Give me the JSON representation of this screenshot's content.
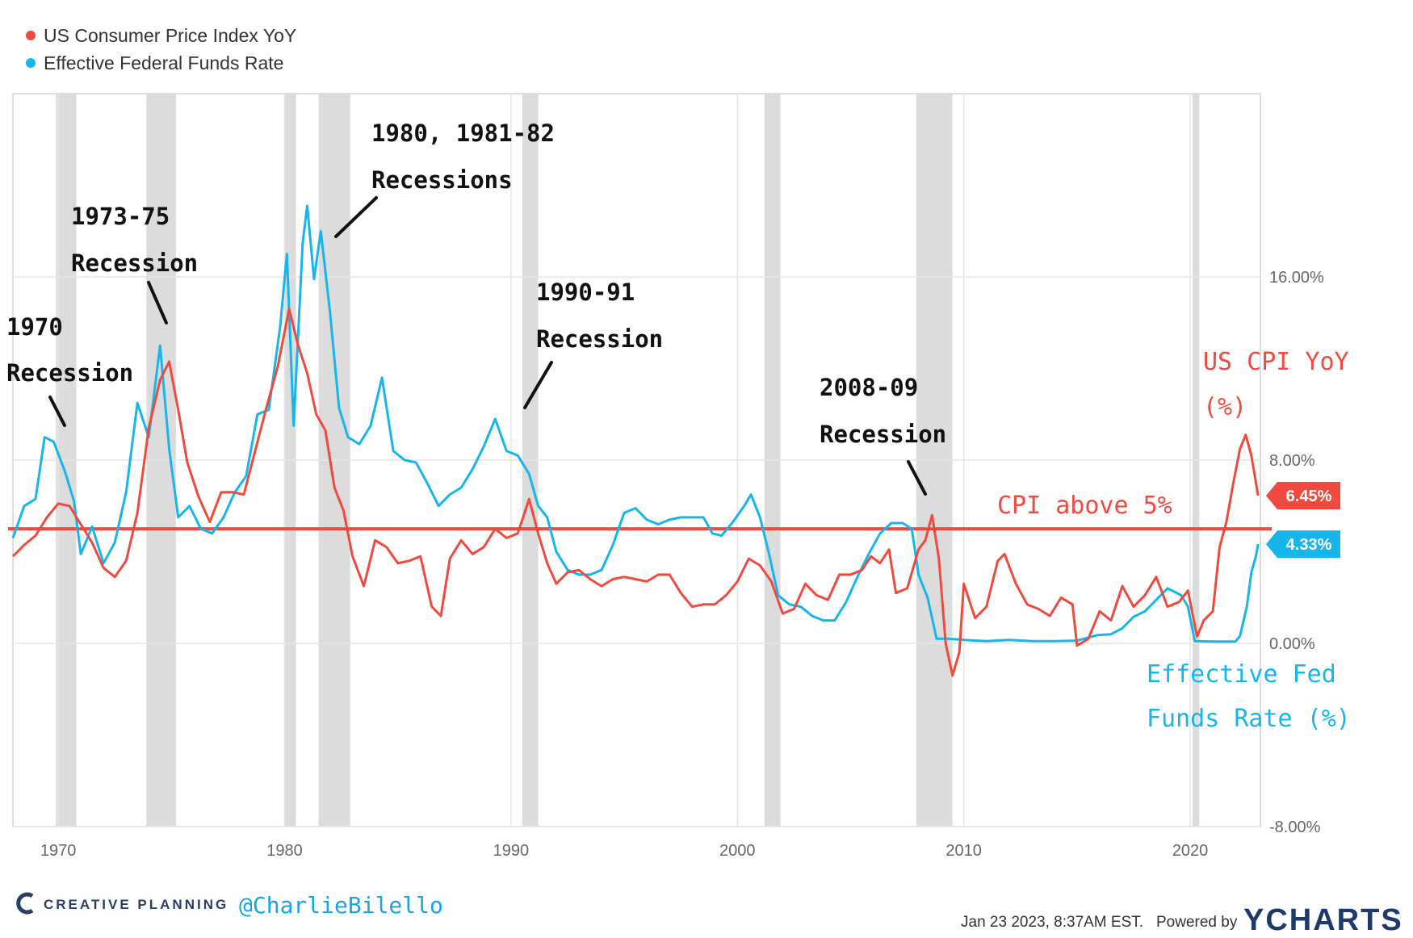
{
  "colors": {
    "cpi": "#f04a3e",
    "fed": "#16b6ec",
    "recession": "#dcdcdc",
    "grid": "#e6e6e6",
    "brand": "#1e3a6b"
  },
  "legend": [
    {
      "label": "US Consumer Price Index YoY",
      "color": "#f04a3e"
    },
    {
      "label": "Effective Federal Funds Rate",
      "color": "#16b6ec"
    }
  ],
  "chart_data": {
    "type": "line",
    "title": "",
    "xlabel": "",
    "ylabel": "",
    "xlim": [
      1968.0,
      2023.1
    ],
    "ylim": [
      -8,
      24
    ],
    "x_ticks": [
      1970,
      1980,
      1990,
      2000,
      2010,
      2020
    ],
    "x_tick_labels": [
      "1970",
      "1980",
      "1990",
      "2000",
      "2010",
      "2020"
    ],
    "y_ticks": [
      16,
      8,
      0,
      -8
    ],
    "y_tick_labels": [
      "16.00%",
      "8.00%",
      "0.00%",
      "-8.00%"
    ],
    "recessions": [
      [
        1969.9,
        1970.8
      ],
      [
        1973.9,
        1975.2
      ],
      [
        1980.0,
        1980.5
      ],
      [
        1981.5,
        1982.9
      ],
      [
        1990.5,
        1991.2
      ],
      [
        2001.2,
        2001.9
      ],
      [
        2007.9,
        2009.5
      ],
      [
        2020.1,
        2020.4
      ]
    ],
    "threshold": {
      "value": 5,
      "label": "CPI above 5%"
    },
    "series": [
      {
        "name": "US Consumer Price Index YoY",
        "color": "#f04a3e",
        "points": [
          [
            1968.0,
            3.8
          ],
          [
            1968.5,
            4.3
          ],
          [
            1969.0,
            4.7
          ],
          [
            1969.5,
            5.5
          ],
          [
            1970.0,
            6.1
          ],
          [
            1970.5,
            6.0
          ],
          [
            1971.0,
            5.2
          ],
          [
            1971.5,
            4.4
          ],
          [
            1972.0,
            3.3
          ],
          [
            1972.5,
            2.9
          ],
          [
            1973.0,
            3.6
          ],
          [
            1973.5,
            5.7
          ],
          [
            1974.0,
            9.4
          ],
          [
            1974.5,
            11.5
          ],
          [
            1974.9,
            12.3
          ],
          [
            1975.3,
            10.2
          ],
          [
            1975.7,
            7.9
          ],
          [
            1976.2,
            6.4
          ],
          [
            1976.7,
            5.3
          ],
          [
            1977.2,
            6.6
          ],
          [
            1977.7,
            6.6
          ],
          [
            1978.2,
            6.5
          ],
          [
            1978.7,
            8.4
          ],
          [
            1979.2,
            10.3
          ],
          [
            1979.7,
            12.1
          ],
          [
            1980.2,
            14.6
          ],
          [
            1980.6,
            13.0
          ],
          [
            1981.0,
            11.8
          ],
          [
            1981.4,
            10.0
          ],
          [
            1981.8,
            9.3
          ],
          [
            1982.2,
            6.8
          ],
          [
            1982.6,
            5.8
          ],
          [
            1983.0,
            3.8
          ],
          [
            1983.5,
            2.5
          ],
          [
            1984.0,
            4.5
          ],
          [
            1984.5,
            4.2
          ],
          [
            1985.0,
            3.5
          ],
          [
            1985.5,
            3.6
          ],
          [
            1986.0,
            3.8
          ],
          [
            1986.5,
            1.6
          ],
          [
            1986.9,
            1.2
          ],
          [
            1987.3,
            3.7
          ],
          [
            1987.8,
            4.5
          ],
          [
            1988.3,
            3.9
          ],
          [
            1988.8,
            4.2
          ],
          [
            1989.3,
            5.0
          ],
          [
            1989.8,
            4.6
          ],
          [
            1990.3,
            4.8
          ],
          [
            1990.8,
            6.3
          ],
          [
            1991.2,
            4.8
          ],
          [
            1991.6,
            3.5
          ],
          [
            1992.0,
            2.6
          ],
          [
            1992.5,
            3.1
          ],
          [
            1993.0,
            3.2
          ],
          [
            1993.5,
            2.8
          ],
          [
            1994.0,
            2.5
          ],
          [
            1994.5,
            2.8
          ],
          [
            1995.0,
            2.9
          ],
          [
            1995.5,
            2.8
          ],
          [
            1996.0,
            2.7
          ],
          [
            1996.5,
            3.0
          ],
          [
            1997.0,
            3.0
          ],
          [
            1997.5,
            2.2
          ],
          [
            1998.0,
            1.6
          ],
          [
            1998.5,
            1.7
          ],
          [
            1999.0,
            1.7
          ],
          [
            1999.5,
            2.1
          ],
          [
            2000.0,
            2.7
          ],
          [
            2000.5,
            3.7
          ],
          [
            2001.0,
            3.4
          ],
          [
            2001.5,
            2.7
          ],
          [
            2002.0,
            1.3
          ],
          [
            2002.5,
            1.5
          ],
          [
            2003.0,
            2.6
          ],
          [
            2003.5,
            2.1
          ],
          [
            2004.0,
            1.9
          ],
          [
            2004.5,
            3.0
          ],
          [
            2005.0,
            3.0
          ],
          [
            2005.5,
            3.2
          ],
          [
            2005.9,
            3.8
          ],
          [
            2006.3,
            3.5
          ],
          [
            2006.7,
            4.1
          ],
          [
            2007.0,
            2.2
          ],
          [
            2007.5,
            2.4
          ],
          [
            2008.0,
            4.1
          ],
          [
            2008.3,
            4.5
          ],
          [
            2008.6,
            5.6
          ],
          [
            2008.9,
            3.7
          ],
          [
            2009.2,
            0.0
          ],
          [
            2009.5,
            -1.4
          ],
          [
            2009.8,
            -0.4
          ],
          [
            2010.0,
            2.6
          ],
          [
            2010.5,
            1.1
          ],
          [
            2011.0,
            1.6
          ],
          [
            2011.5,
            3.6
          ],
          [
            2011.8,
            3.9
          ],
          [
            2012.3,
            2.6
          ],
          [
            2012.8,
            1.7
          ],
          [
            2013.3,
            1.5
          ],
          [
            2013.8,
            1.2
          ],
          [
            2014.3,
            2.0
          ],
          [
            2014.8,
            1.7
          ],
          [
            2015.0,
            -0.1
          ],
          [
            2015.5,
            0.2
          ],
          [
            2016.0,
            1.4
          ],
          [
            2016.5,
            1.0
          ],
          [
            2017.0,
            2.5
          ],
          [
            2017.5,
            1.6
          ],
          [
            2018.0,
            2.1
          ],
          [
            2018.5,
            2.9
          ],
          [
            2019.0,
            1.6
          ],
          [
            2019.5,
            1.8
          ],
          [
            2019.9,
            2.3
          ],
          [
            2020.3,
            0.3
          ],
          [
            2020.6,
            1.0
          ],
          [
            2021.0,
            1.4
          ],
          [
            2021.3,
            4.2
          ],
          [
            2021.6,
            5.3
          ],
          [
            2021.9,
            7.0
          ],
          [
            2022.2,
            8.5
          ],
          [
            2022.45,
            9.1
          ],
          [
            2022.7,
            8.2
          ],
          [
            2023.0,
            6.45
          ]
        ]
      },
      {
        "name": "Effective Federal Funds Rate",
        "color": "#16b6ec",
        "points": [
          [
            1968.0,
            4.6
          ],
          [
            1968.5,
            6.0
          ],
          [
            1969.0,
            6.3
          ],
          [
            1969.4,
            9.0
          ],
          [
            1969.8,
            8.8
          ],
          [
            1970.3,
            7.5
          ],
          [
            1970.7,
            6.2
          ],
          [
            1971.0,
            3.9
          ],
          [
            1971.5,
            5.1
          ],
          [
            1972.0,
            3.5
          ],
          [
            1972.5,
            4.4
          ],
          [
            1973.0,
            6.6
          ],
          [
            1973.5,
            10.5
          ],
          [
            1974.0,
            9.0
          ],
          [
            1974.5,
            13.0
          ],
          [
            1974.9,
            8.5
          ],
          [
            1975.3,
            5.5
          ],
          [
            1975.8,
            6.0
          ],
          [
            1976.3,
            5.0
          ],
          [
            1976.8,
            4.8
          ],
          [
            1977.3,
            5.5
          ],
          [
            1977.8,
            6.6
          ],
          [
            1978.3,
            7.3
          ],
          [
            1978.8,
            10.0
          ],
          [
            1979.3,
            10.2
          ],
          [
            1979.8,
            13.8
          ],
          [
            1980.1,
            17.0
          ],
          [
            1980.4,
            9.5
          ],
          [
            1980.8,
            17.5
          ],
          [
            1981.0,
            19.1
          ],
          [
            1981.3,
            15.9
          ],
          [
            1981.6,
            18.0
          ],
          [
            1982.0,
            14.5
          ],
          [
            1982.4,
            10.3
          ],
          [
            1982.8,
            9.0
          ],
          [
            1983.3,
            8.7
          ],
          [
            1983.8,
            9.5
          ],
          [
            1984.3,
            11.6
          ],
          [
            1984.8,
            8.4
          ],
          [
            1985.3,
            8.0
          ],
          [
            1985.8,
            7.9
          ],
          [
            1986.3,
            7.0
          ],
          [
            1986.8,
            6.0
          ],
          [
            1987.3,
            6.5
          ],
          [
            1987.8,
            6.8
          ],
          [
            1988.3,
            7.6
          ],
          [
            1988.8,
            8.6
          ],
          [
            1989.3,
            9.8
          ],
          [
            1989.8,
            8.4
          ],
          [
            1990.3,
            8.2
          ],
          [
            1990.8,
            7.4
          ],
          [
            1991.2,
            6.0
          ],
          [
            1991.6,
            5.5
          ],
          [
            1992.0,
            4.0
          ],
          [
            1992.5,
            3.2
          ],
          [
            1993.0,
            3.0
          ],
          [
            1993.5,
            3.0
          ],
          [
            1994.0,
            3.2
          ],
          [
            1994.5,
            4.3
          ],
          [
            1995.0,
            5.7
          ],
          [
            1995.5,
            5.9
          ],
          [
            1996.0,
            5.4
          ],
          [
            1996.5,
            5.2
          ],
          [
            1997.0,
            5.4
          ],
          [
            1997.5,
            5.5
          ],
          [
            1998.0,
            5.5
          ],
          [
            1998.5,
            5.5
          ],
          [
            1998.9,
            4.8
          ],
          [
            1999.3,
            4.7
          ],
          [
            1999.8,
            5.3
          ],
          [
            2000.3,
            6.0
          ],
          [
            2000.6,
            6.5
          ],
          [
            2001.0,
            5.5
          ],
          [
            2001.4,
            3.9
          ],
          [
            2001.8,
            2.1
          ],
          [
            2002.3,
            1.7
          ],
          [
            2002.8,
            1.6
          ],
          [
            2003.3,
            1.2
          ],
          [
            2003.8,
            1.0
          ],
          [
            2004.3,
            1.0
          ],
          [
            2004.8,
            1.8
          ],
          [
            2005.3,
            2.9
          ],
          [
            2005.8,
            3.9
          ],
          [
            2006.3,
            4.8
          ],
          [
            2006.8,
            5.25
          ],
          [
            2007.3,
            5.25
          ],
          [
            2007.7,
            5.0
          ],
          [
            2008.0,
            3.0
          ],
          [
            2008.4,
            2.0
          ],
          [
            2008.8,
            0.2
          ],
          [
            2009.3,
            0.2
          ],
          [
            2010.0,
            0.15
          ],
          [
            2011.0,
            0.1
          ],
          [
            2012.0,
            0.15
          ],
          [
            2013.0,
            0.1
          ],
          [
            2014.0,
            0.1
          ],
          [
            2015.0,
            0.12
          ],
          [
            2015.9,
            0.36
          ],
          [
            2016.5,
            0.4
          ],
          [
            2017.0,
            0.66
          ],
          [
            2017.5,
            1.16
          ],
          [
            2018.0,
            1.4
          ],
          [
            2018.5,
            1.9
          ],
          [
            2019.0,
            2.4
          ],
          [
            2019.6,
            2.1
          ],
          [
            2019.9,
            1.6
          ],
          [
            2020.2,
            0.1
          ],
          [
            2021.0,
            0.08
          ],
          [
            2022.0,
            0.08
          ],
          [
            2022.2,
            0.33
          ],
          [
            2022.5,
            1.6
          ],
          [
            2022.7,
            3.1
          ],
          [
            2022.9,
            3.8
          ],
          [
            2023.0,
            4.33
          ]
        ]
      }
    ],
    "end_labels": [
      {
        "series": "US Consumer Price Index YoY",
        "value": 6.45,
        "label": "6.45%"
      },
      {
        "series": "Effective Federal Funds Rate",
        "value": 4.33,
        "label": "4.33%"
      }
    ],
    "annotations": [
      {
        "lines": [
          "1970",
          "Recession"
        ]
      },
      {
        "lines": [
          "1973-75",
          "Recession"
        ]
      },
      {
        "lines": [
          "1980, 1981-82",
          "Recessions"
        ]
      },
      {
        "lines": [
          "1990-91",
          "Recession"
        ]
      },
      {
        "lines": [
          "2008-09",
          "Recession"
        ]
      },
      {
        "lines": [
          "US CPI YoY",
          "(%)"
        ]
      },
      {
        "lines": [
          "Effective Fed",
          "Funds Rate (%)"
        ]
      }
    ]
  },
  "footer": {
    "brand": "CREATIVE PLANNING",
    "handle": "@CharlieBilello",
    "timestamp": "Jan 23 2023, 8:37AM EST.",
    "powered_by": "Powered by",
    "ycharts": "YCHARTS"
  }
}
